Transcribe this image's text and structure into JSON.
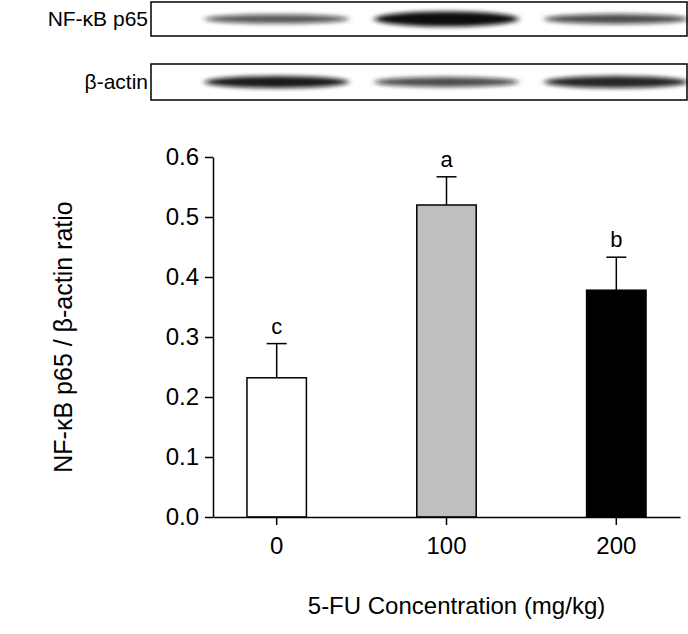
{
  "chart_data": {
    "type": "bar",
    "blot_labels": [
      "NF-κB p65",
      "β-actin"
    ],
    "x_label": "5-FU Concentration (mg/kg)",
    "y_label": "NF-κB p65 / β-actin ratio",
    "categories": [
      "0",
      "100",
      "200"
    ],
    "values": [
      0.232,
      0.52,
      0.378
    ],
    "errors": [
      0.057,
      0.047,
      0.055
    ],
    "annotations": [
      "c",
      "a",
      "b"
    ],
    "colors": [
      "#ffffff",
      "#bfbfbf",
      "#000000"
    ],
    "ylim": [
      0,
      0.6
    ],
    "yticks": [
      {
        "value": 0,
        "label": "0.0"
      },
      0.1,
      0.2,
      0.3,
      0.4,
      0.5,
      0.6
    ],
    "grid": false
  }
}
